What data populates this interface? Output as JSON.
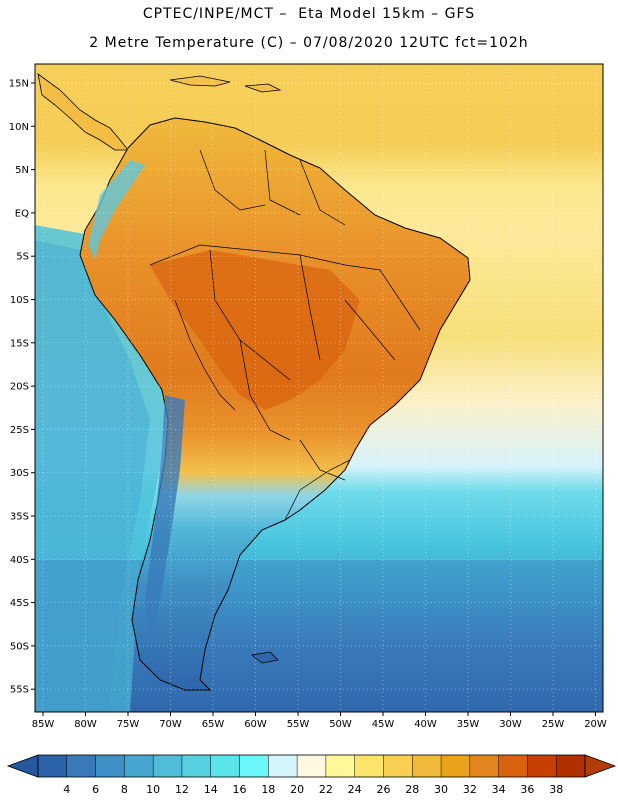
{
  "header": {
    "line1": "CPTEC/INPE/MCT –  Eta Model 15km – GFS",
    "line2": "2 Metre Temperature (C) – 07/08/2020 12UTC fct=102h"
  },
  "map": {
    "lat_labels": [
      "15N",
      "10N",
      "5N",
      "EQ",
      "5S",
      "10S",
      "15S",
      "20S",
      "25S",
      "30S",
      "35S",
      "40S",
      "45S",
      "50S",
      "55S"
    ],
    "lon_labels": [
      "85W",
      "80W",
      "75W",
      "70W",
      "65W",
      "60W",
      "55W",
      "50W",
      "45W",
      "40W",
      "35W",
      "30W",
      "25W",
      "20W"
    ]
  },
  "colorbar": {
    "labels": [
      "4",
      "6",
      "8",
      "10",
      "12",
      "14",
      "16",
      "18",
      "20",
      "22",
      "24",
      "26",
      "28",
      "30",
      "32",
      "34",
      "36",
      "38"
    ],
    "colors": [
      "#2c63a8",
      "#3a7ab9",
      "#3f90c6",
      "#47a6d1",
      "#4fbcd8",
      "#56d0e0",
      "#5be3ea",
      "#6bf7f7",
      "#d4f5fb",
      "#fff7e0",
      "#fff79a",
      "#fce46b",
      "#f8cf52",
      "#f0b93b",
      "#eba21b",
      "#e4851f",
      "#d9620e",
      "#c63f04",
      "#b03000"
    ],
    "left_cap_color": "#2458a0",
    "right_cap_color": "#b33d07"
  }
}
